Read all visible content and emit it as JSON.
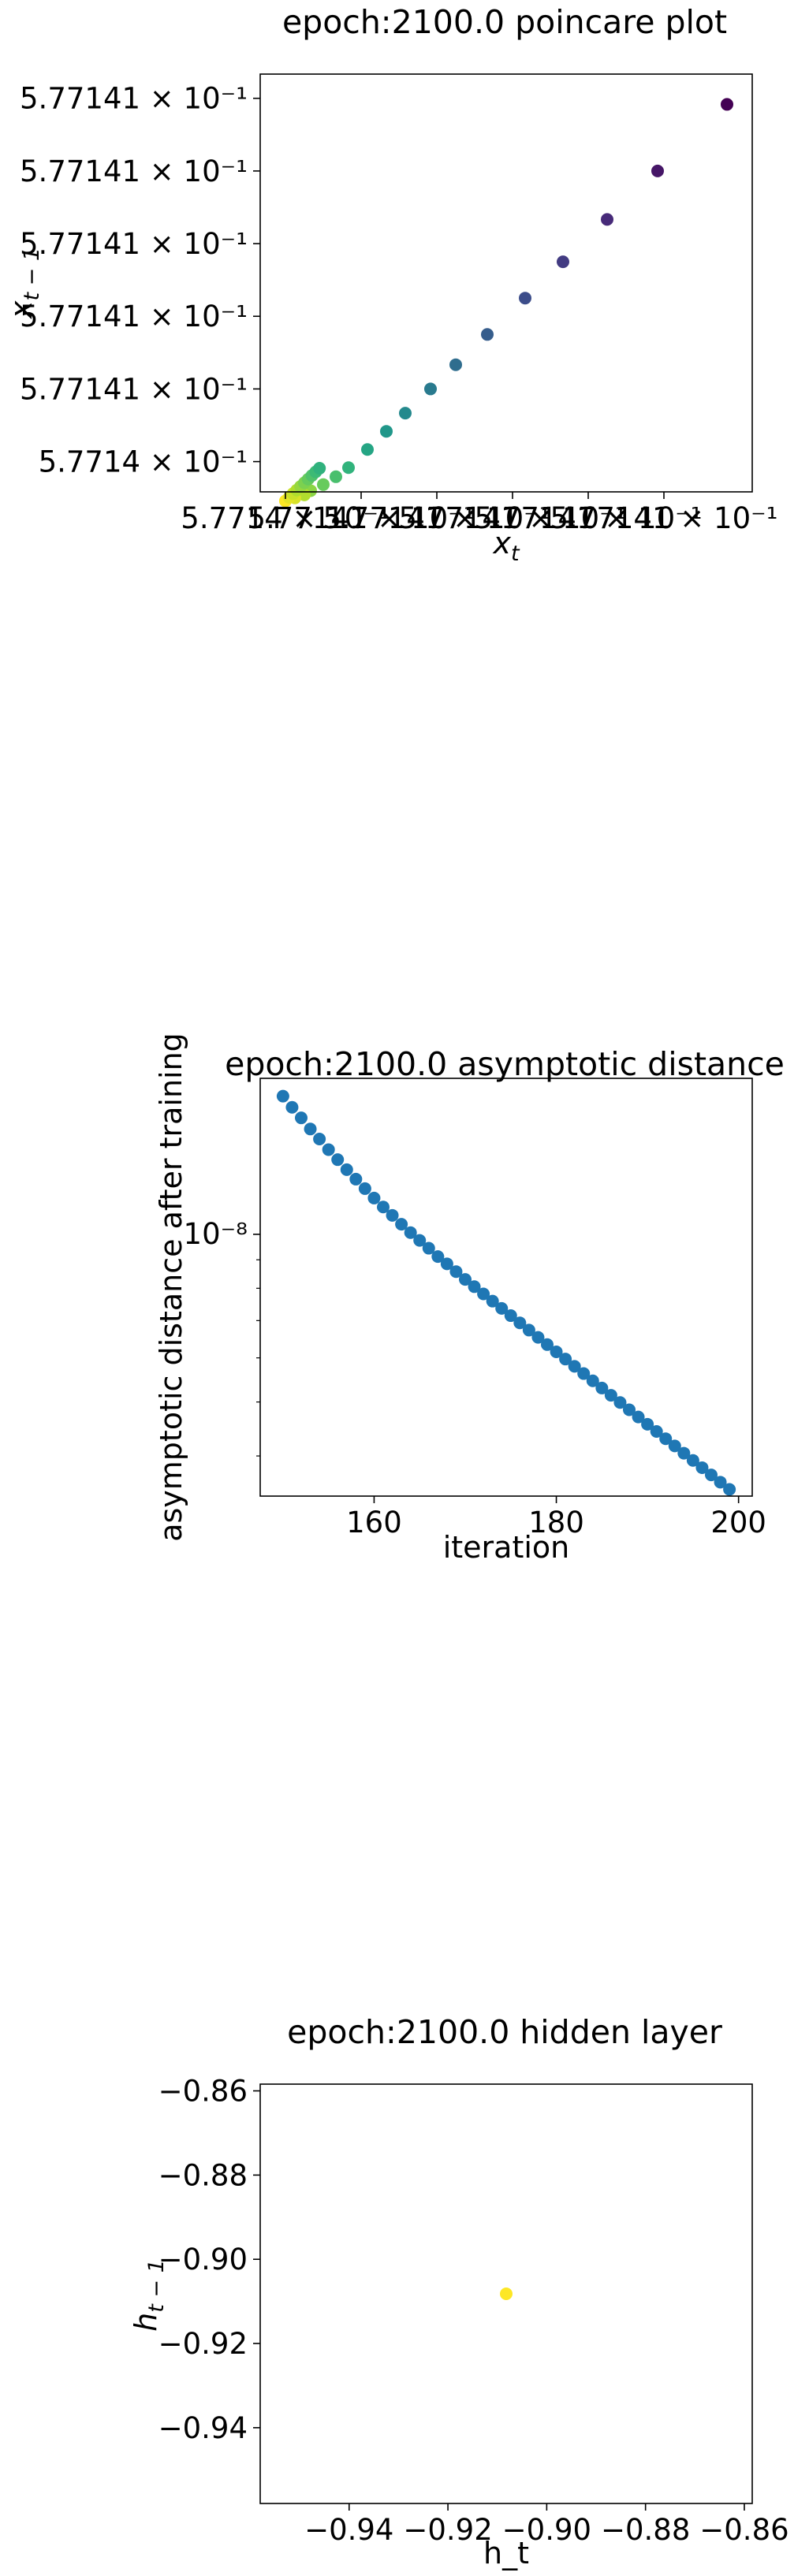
{
  "chart_data": [
    {
      "type": "scatter",
      "title": "epoch:2100.0 poincare plot",
      "xlabel": "x_t",
      "ylabel": "x_{t-1}",
      "xscale": "log",
      "yscale": "log",
      "colormap": "viridis",
      "color_note": "points colored by iteration order: early = dark purple, late = yellow",
      "x_tick_labels": [
        "5.7714 × 10⁻¹",
        "5.77141 × 10⁻¹",
        "5.77141 × 10⁻¹",
        "5.77141 × 10⁻¹",
        "5.77141 × 10⁻¹",
        "5.77141 × 10⁻¹"
      ],
      "y_tick_labels": [
        "5.7714 × 10⁻¹",
        "5.77141 × 10⁻¹",
        "5.77141 × 10⁻¹",
        "5.77141 × 10⁻¹",
        "5.77141 × 10⁻¹",
        "5.77141 × 10⁻¹"
      ],
      "x_tick_values": [
        0.57714,
        0.5771412,
        0.5771424,
        0.5771436,
        0.5771448,
        0.577146
      ],
      "y_tick_values": [
        0.57714,
        0.5771412,
        0.5771424,
        0.5771436,
        0.5771448,
        0.577146
      ],
      "xlim": [
        0.5771396,
        0.5771474
      ],
      "ylim": [
        0.5771395,
        0.5771464
      ],
      "x": [
        0.577147,
        0.5771459,
        0.5771451,
        0.5771444,
        0.5771438,
        0.5771432,
        0.5771427,
        0.5771423,
        0.5771419,
        0.5771416,
        0.5771413,
        0.577141,
        0.5771408,
        0.5771406,
        0.5771404,
        0.5771403,
        0.57714015,
        0.57714
      ],
      "y": [
        0.5771459,
        0.5771448,
        0.577144,
        0.5771433,
        0.5771427,
        0.5771421,
        0.5771416,
        0.5771412,
        0.5771408,
        0.5771405,
        0.5771402,
        0.5771399,
        0.57713975,
        0.57713962,
        0.57713952,
        0.57713945,
        0.5771394,
        0.57713935
      ],
      "grid": false
    },
    {
      "type": "scatter",
      "title": "epoch:2100.0 asymptotic distance",
      "xlabel": "iteration",
      "ylabel": "asymptotic distance after training",
      "yscale": "log",
      "color": "#1f77b4",
      "x_ticks": [
        160,
        180,
        200
      ],
      "y_tick_labels": [
        "10⁻⁸"
      ],
      "xlim": [
        147.5,
        201.5
      ],
      "ylim_log10": [
        -8.47,
        -7.72
      ],
      "x": [
        150,
        151,
        152,
        153,
        154,
        155,
        156,
        157,
        158,
        159,
        160,
        161,
        162,
        163,
        164,
        165,
        166,
        167,
        168,
        169,
        170,
        171,
        172,
        173,
        174,
        175,
        176,
        177,
        178,
        179,
        180,
        181,
        182,
        183,
        184,
        185,
        186,
        187,
        188,
        189,
        190,
        191,
        192,
        193,
        194,
        195,
        196,
        197,
        198,
        199
      ],
      "y_log10": [
        -7.752,
        -7.772,
        -7.791,
        -7.811,
        -7.829,
        -7.848,
        -7.866,
        -7.884,
        -7.901,
        -7.918,
        -7.935,
        -7.951,
        -7.966,
        -7.982,
        -7.997,
        -8.011,
        -8.025,
        -8.04,
        -8.053,
        -8.067,
        -8.081,
        -8.094,
        -8.107,
        -8.12,
        -8.133,
        -8.146,
        -8.159,
        -8.172,
        -8.185,
        -8.198,
        -8.211,
        -8.224,
        -8.237,
        -8.25,
        -8.263,
        -8.276,
        -8.289,
        -8.302,
        -8.315,
        -8.328,
        -8.341,
        -8.354,
        -8.367,
        -8.38,
        -8.393,
        -8.406,
        -8.419,
        -8.432,
        -8.445,
        -8.458
      ],
      "grid": false
    },
    {
      "type": "scatter",
      "title": "epoch:2100.0 hidden layer",
      "xlabel": "h_t",
      "ylabel": "h_{t-1}",
      "color": "#fde725",
      "x_ticks": [
        -0.94,
        -0.92,
        -0.9,
        -0.88,
        -0.86
      ],
      "y_ticks": [
        -0.86,
        -0.88,
        -0.9,
        -0.92,
        -0.94
      ],
      "x_tick_labels": [
        "−0.94",
        "−0.92",
        "−0.90",
        "−0.88",
        "−0.86"
      ],
      "y_tick_labels": [
        "−0.86",
        "−0.88",
        "−0.90",
        "−0.92",
        "−0.94"
      ],
      "xlim": [
        -0.958,
        -0.8584
      ],
      "ylim": [
        -0.958,
        -0.8584
      ],
      "x": [
        -0.9082
      ],
      "y": [
        -0.9082
      ],
      "grid": false
    }
  ]
}
